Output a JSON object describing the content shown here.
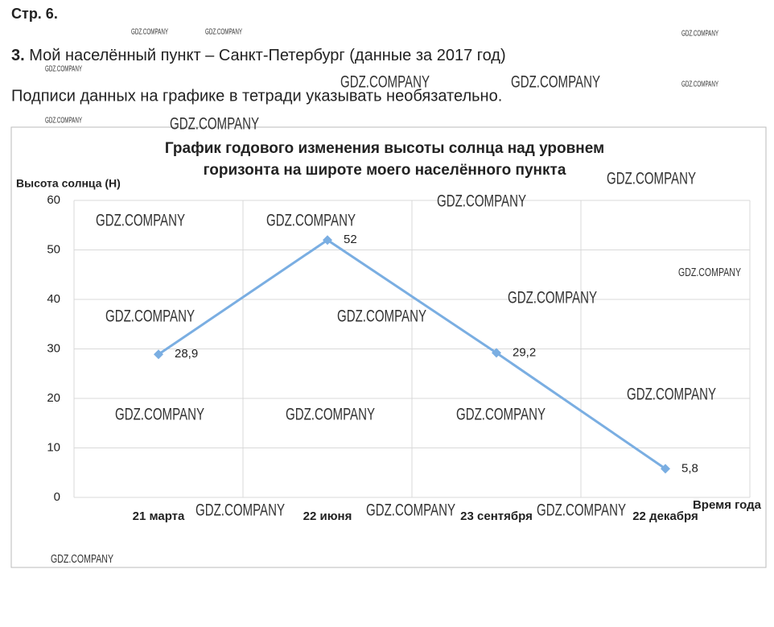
{
  "header": {
    "page": "Стр. 6.",
    "task_number": "3.",
    "task_text": "Мой населённый пункт – Санкт-Петербург (данные за 2017 год)",
    "note": "Подписи данных на графике в тетради указывать необязательно."
  },
  "watermark": "GDZ.COMPANY",
  "chart_data": {
    "type": "line",
    "title": [
      "График годового изменения высоты солнца над уровнем",
      "горизонта на широте моего населённого пункта"
    ],
    "y_label": "Высота солнца (H)",
    "x_label": "Время года",
    "categories": [
      "21 марта",
      "22 июня",
      "23 сентября",
      "22 декабря"
    ],
    "series": [
      {
        "color": "#7aaee2",
        "values": [
          28.9,
          52,
          29.2,
          5.8
        ],
        "value_labels": [
          "28,9",
          "52",
          "29,2",
          "5,8"
        ]
      }
    ],
    "ylim": [
      0,
      60
    ],
    "yticks": [
      0,
      10,
      20,
      30,
      40,
      50,
      60
    ],
    "grid": true
  }
}
